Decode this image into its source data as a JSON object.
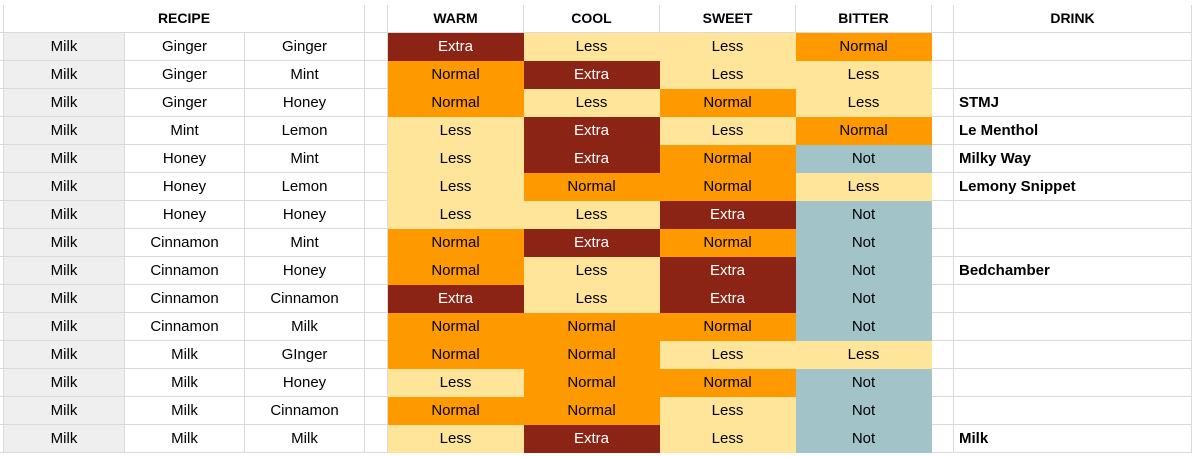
{
  "headers": {
    "recipe": "RECIPE",
    "warm": "WARM",
    "cool": "COOL",
    "sweet": "SWEET",
    "bitter": "BITTER",
    "drink": "DRINK"
  },
  "colors": {
    "Extra": "#8b2414",
    "Normal": "#ff9900",
    "Less": "#ffe599",
    "Not": "#a2c4c9",
    "row_header": "#efefef",
    "grid": "#dadada"
  },
  "rows": [
    {
      "i1": "Milk",
      "i2": "Ginger",
      "i3": "Ginger",
      "warm": "Extra",
      "cool": "Less",
      "sweet": "Less",
      "bitter": "Normal",
      "drink": ""
    },
    {
      "i1": "Milk",
      "i2": "Ginger",
      "i3": "Mint",
      "warm": "Normal",
      "cool": "Extra",
      "sweet": "Less",
      "bitter": "Less",
      "drink": ""
    },
    {
      "i1": "Milk",
      "i2": "Ginger",
      "i3": "Honey",
      "warm": "Normal",
      "cool": "Less",
      "sweet": "Normal",
      "bitter": "Less",
      "drink": "STMJ"
    },
    {
      "i1": "Milk",
      "i2": "Mint",
      "i3": "Lemon",
      "warm": "Less",
      "cool": "Extra",
      "sweet": "Less",
      "bitter": "Normal",
      "drink": "Le Menthol"
    },
    {
      "i1": "Milk",
      "i2": "Honey",
      "i3": "Mint",
      "warm": "Less",
      "cool": "Extra",
      "sweet": "Normal",
      "bitter": "Not",
      "drink": "Milky Way"
    },
    {
      "i1": "Milk",
      "i2": "Honey",
      "i3": "Lemon",
      "warm": "Less",
      "cool": "Normal",
      "sweet": "Normal",
      "bitter": "Less",
      "drink": "Lemony Snippet"
    },
    {
      "i1": "Milk",
      "i2": "Honey",
      "i3": "Honey",
      "warm": "Less",
      "cool": "Less",
      "sweet": "Extra",
      "bitter": "Not",
      "drink": ""
    },
    {
      "i1": "Milk",
      "i2": "Cinnamon",
      "i3": "Mint",
      "warm": "Normal",
      "cool": "Extra",
      "sweet": "Normal",
      "bitter": "Not",
      "drink": ""
    },
    {
      "i1": "Milk",
      "i2": "Cinnamon",
      "i3": "Honey",
      "warm": "Normal",
      "cool": "Less",
      "sweet": "Extra",
      "bitter": "Not",
      "drink": "Bedchamber"
    },
    {
      "i1": "Milk",
      "i2": "Cinnamon",
      "i3": "Cinnamon",
      "warm": "Extra",
      "cool": "Less",
      "sweet": "Extra",
      "bitter": "Not",
      "drink": ""
    },
    {
      "i1": "Milk",
      "i2": "Cinnamon",
      "i3": "Milk",
      "warm": "Normal",
      "cool": "Normal",
      "sweet": "Normal",
      "bitter": "Not",
      "drink": ""
    },
    {
      "i1": "Milk",
      "i2": "Milk",
      "i3": "GInger",
      "warm": "Normal",
      "cool": "Normal",
      "sweet": "Less",
      "bitter": "Less",
      "drink": ""
    },
    {
      "i1": "Milk",
      "i2": "Milk",
      "i3": "Honey",
      "warm": "Less",
      "cool": "Normal",
      "sweet": "Normal",
      "bitter": "Not",
      "drink": ""
    },
    {
      "i1": "Milk",
      "i2": "Milk",
      "i3": "Cinnamon",
      "warm": "Normal",
      "cool": "Normal",
      "sweet": "Less",
      "bitter": "Not",
      "drink": ""
    },
    {
      "i1": "Milk",
      "i2": "Milk",
      "i3": "Milk",
      "warm": "Less",
      "cool": "Extra",
      "sweet": "Less",
      "bitter": "Not",
      "drink": "Milk"
    }
  ]
}
